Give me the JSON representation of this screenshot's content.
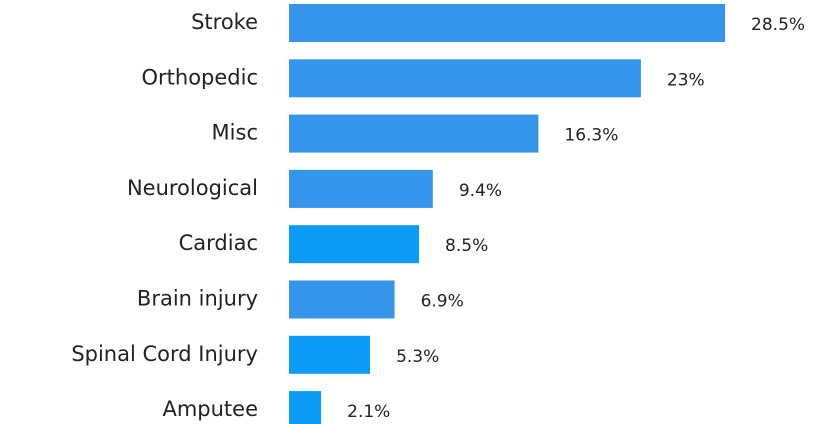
{
  "chart_data": {
    "type": "bar",
    "orientation": "horizontal",
    "categories": [
      "Stroke",
      "Orthopedic",
      "Misc",
      "Neurological",
      "Cardiac",
      "Brain injury",
      "Spinal Cord Injury",
      "Amputee"
    ],
    "values": [
      28.5,
      23,
      16.3,
      9.4,
      8.5,
      6.9,
      5.3,
      2.1
    ],
    "value_labels": [
      "28.5%",
      "23%",
      "16.3%",
      "9.4%",
      "8.5%",
      "6.9%",
      "5.3%",
      "2.1%"
    ],
    "colors": [
      "#3595eb",
      "#3595eb",
      "#3595eb",
      "#3595eb",
      "#0c9bf7",
      "#3595eb",
      "#0c9bf7",
      "#0c9bf7"
    ]
  }
}
